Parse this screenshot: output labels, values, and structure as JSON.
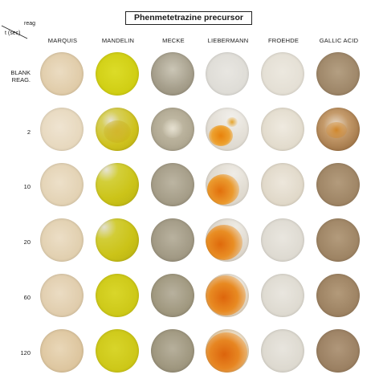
{
  "title": "Phenmetetrazine precursor",
  "corner": {
    "reag_label": "reag",
    "time_label": "t (sec)"
  },
  "columns": [
    {
      "label": "MARQUIS"
    },
    {
      "label": "MANDELIN"
    },
    {
      "label": "MECKE"
    },
    {
      "label": "LIEBERMANN"
    },
    {
      "label": "FROEHDE"
    },
    {
      "label": "GALLIC ACID"
    }
  ],
  "rows": [
    {
      "label_line1": "BLANK",
      "label_line2": "REAG."
    },
    {
      "label_line1": "2",
      "label_line2": ""
    },
    {
      "label_line1": "10",
      "label_line2": ""
    },
    {
      "label_line1": "20",
      "label_line2": ""
    },
    {
      "label_line1": "60",
      "label_line2": ""
    },
    {
      "label_line1": "120",
      "label_line2": ""
    }
  ],
  "colors": {
    "marquis": "#e3d2b4",
    "mandelin": "#d4d21a",
    "mecke": "#a9a391",
    "liebermann_blank": "#e2e0da",
    "liebermann_reaction": "#e68a14",
    "froehde": "#e6e2da",
    "gallic_acid": "#a69073"
  }
}
